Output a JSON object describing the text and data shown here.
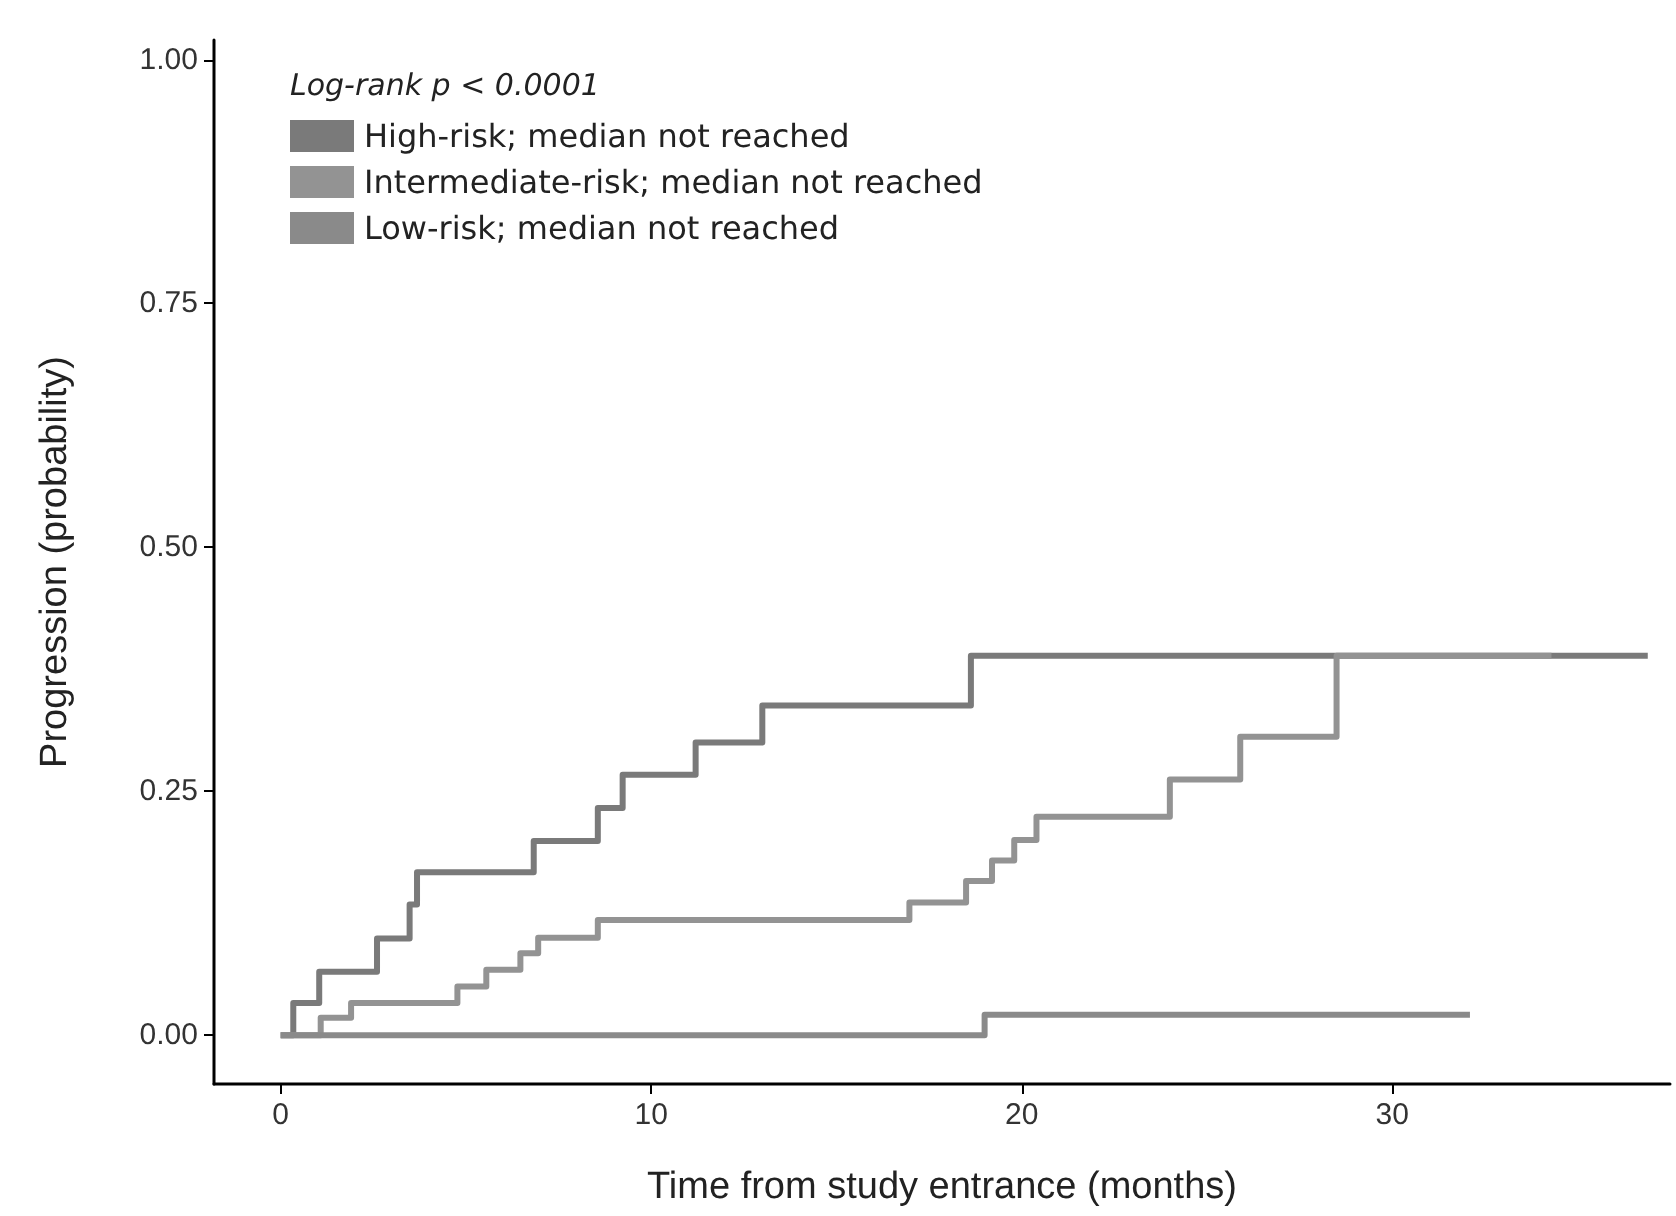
{
  "chart_data": {
    "type": "step",
    "xlabel": "Time from study entrance (months)",
    "ylabel": "Progression (probability)",
    "legend_title": "Log-rank p < 0.0001",
    "legend": "top left",
    "grid": false,
    "marker": "none",
    "line_style": "solid",
    "xlim": [
      -1.8,
      37.5
    ],
    "xticks": [
      0,
      10,
      20,
      30
    ],
    "ylim": [
      -0.05,
      1.02
    ],
    "yticks": [
      {
        "value": 0,
        "label": "0.00"
      },
      {
        "value": 0.25,
        "label": "0.25"
      },
      {
        "value": 0.5,
        "label": "0.50"
      },
      {
        "value": 0.75,
        "label": "0.75"
      },
      {
        "value": 1,
        "label": "1.00"
      }
    ],
    "series": [
      {
        "name": "High-risk; median not reached",
        "color": "#7a7a7a",
        "x": [
          0,
          0.34,
          1.04,
          2.6,
          3.48,
          3.68,
          6.83,
          8.56,
          9.23,
          11.2,
          13.0,
          18.63,
          36.9
        ],
        "values": [
          0,
          0.033,
          0.065,
          0.099,
          0.134,
          0.167,
          0.199,
          0.233,
          0.267,
          0.3,
          0.338,
          0.389,
          0.389
        ]
      },
      {
        "name": "Intermediate-risk; median not reached",
        "color": "#939393",
        "x": [
          0,
          1.08,
          1.9,
          4.77,
          5.55,
          6.47,
          6.95,
          8.56,
          16.97,
          18.5,
          19.2,
          19.8,
          20.4,
          24.0,
          25.9,
          28.5,
          34.3
        ],
        "values": [
          0,
          0.018,
          0.033,
          0.05,
          0.067,
          0.084,
          0.1,
          0.118,
          0.136,
          0.158,
          0.179,
          0.2,
          0.224,
          0.262,
          0.306,
          0.389,
          0.389
        ]
      },
      {
        "name": "Low-risk; median not reached",
        "color": "#8a8a8a",
        "x": [
          0,
          19.0,
          32.1
        ],
        "values": [
          0,
          0.021,
          0.021
        ]
      }
    ]
  }
}
